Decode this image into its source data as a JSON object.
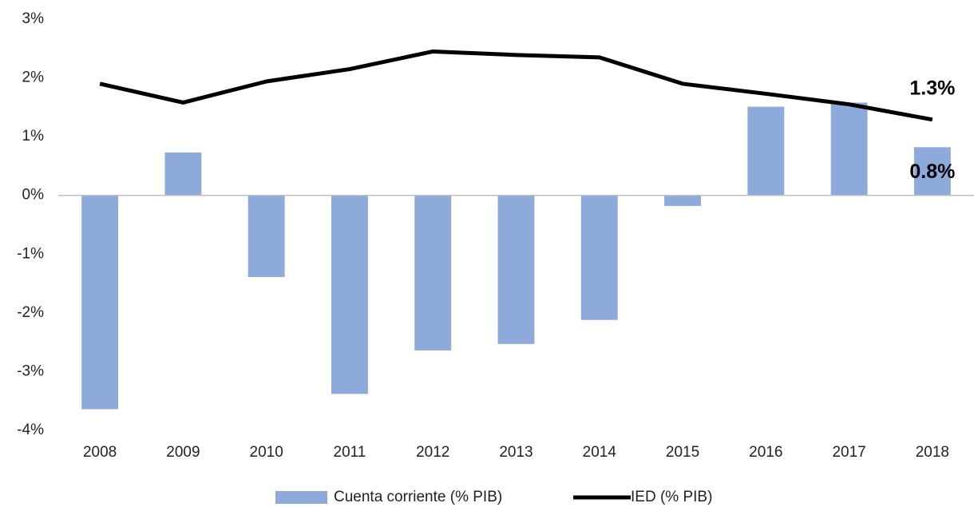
{
  "chart_data": {
    "type": "bar_line",
    "categories": [
      "2008",
      "2009",
      "2010",
      "2011",
      "2012",
      "2013",
      "2014",
      "2015",
      "2016",
      "2017",
      "2018"
    ],
    "series": [
      {
        "name": "Cuenta corriente (% PIB)",
        "type": "bar",
        "color": "#8eaadb",
        "values": [
          -3.64,
          0.73,
          -1.39,
          -3.38,
          -2.64,
          -2.53,
          -2.12,
          -0.18,
          1.51,
          1.58,
          0.82
        ],
        "value_labels": [
          null,
          null,
          null,
          null,
          null,
          null,
          null,
          null,
          null,
          null,
          "0.8%"
        ]
      },
      {
        "name": "IED (% PIB)",
        "type": "line",
        "color": "#000000",
        "values": [
          1.9,
          1.58,
          1.94,
          2.15,
          2.45,
          2.39,
          2.35,
          1.9,
          1.73,
          1.55,
          1.29
        ],
        "value_labels": [
          null,
          null,
          null,
          null,
          null,
          null,
          null,
          null,
          null,
          null,
          "1.3%"
        ]
      }
    ],
    "ylim": [
      -4,
      3
    ],
    "yticks": [
      {
        "value": -4,
        "label": "-4%"
      },
      {
        "value": -3,
        "label": "-3%"
      },
      {
        "value": -2,
        "label": "-2%"
      },
      {
        "value": -1,
        "label": "-1%"
      },
      {
        "value": 0,
        "label": "0%"
      },
      {
        "value": 1,
        "label": "1%"
      },
      {
        "value": 2,
        "label": "2%"
      },
      {
        "value": 3,
        "label": "3%"
      }
    ],
    "legend": "bottom"
  }
}
